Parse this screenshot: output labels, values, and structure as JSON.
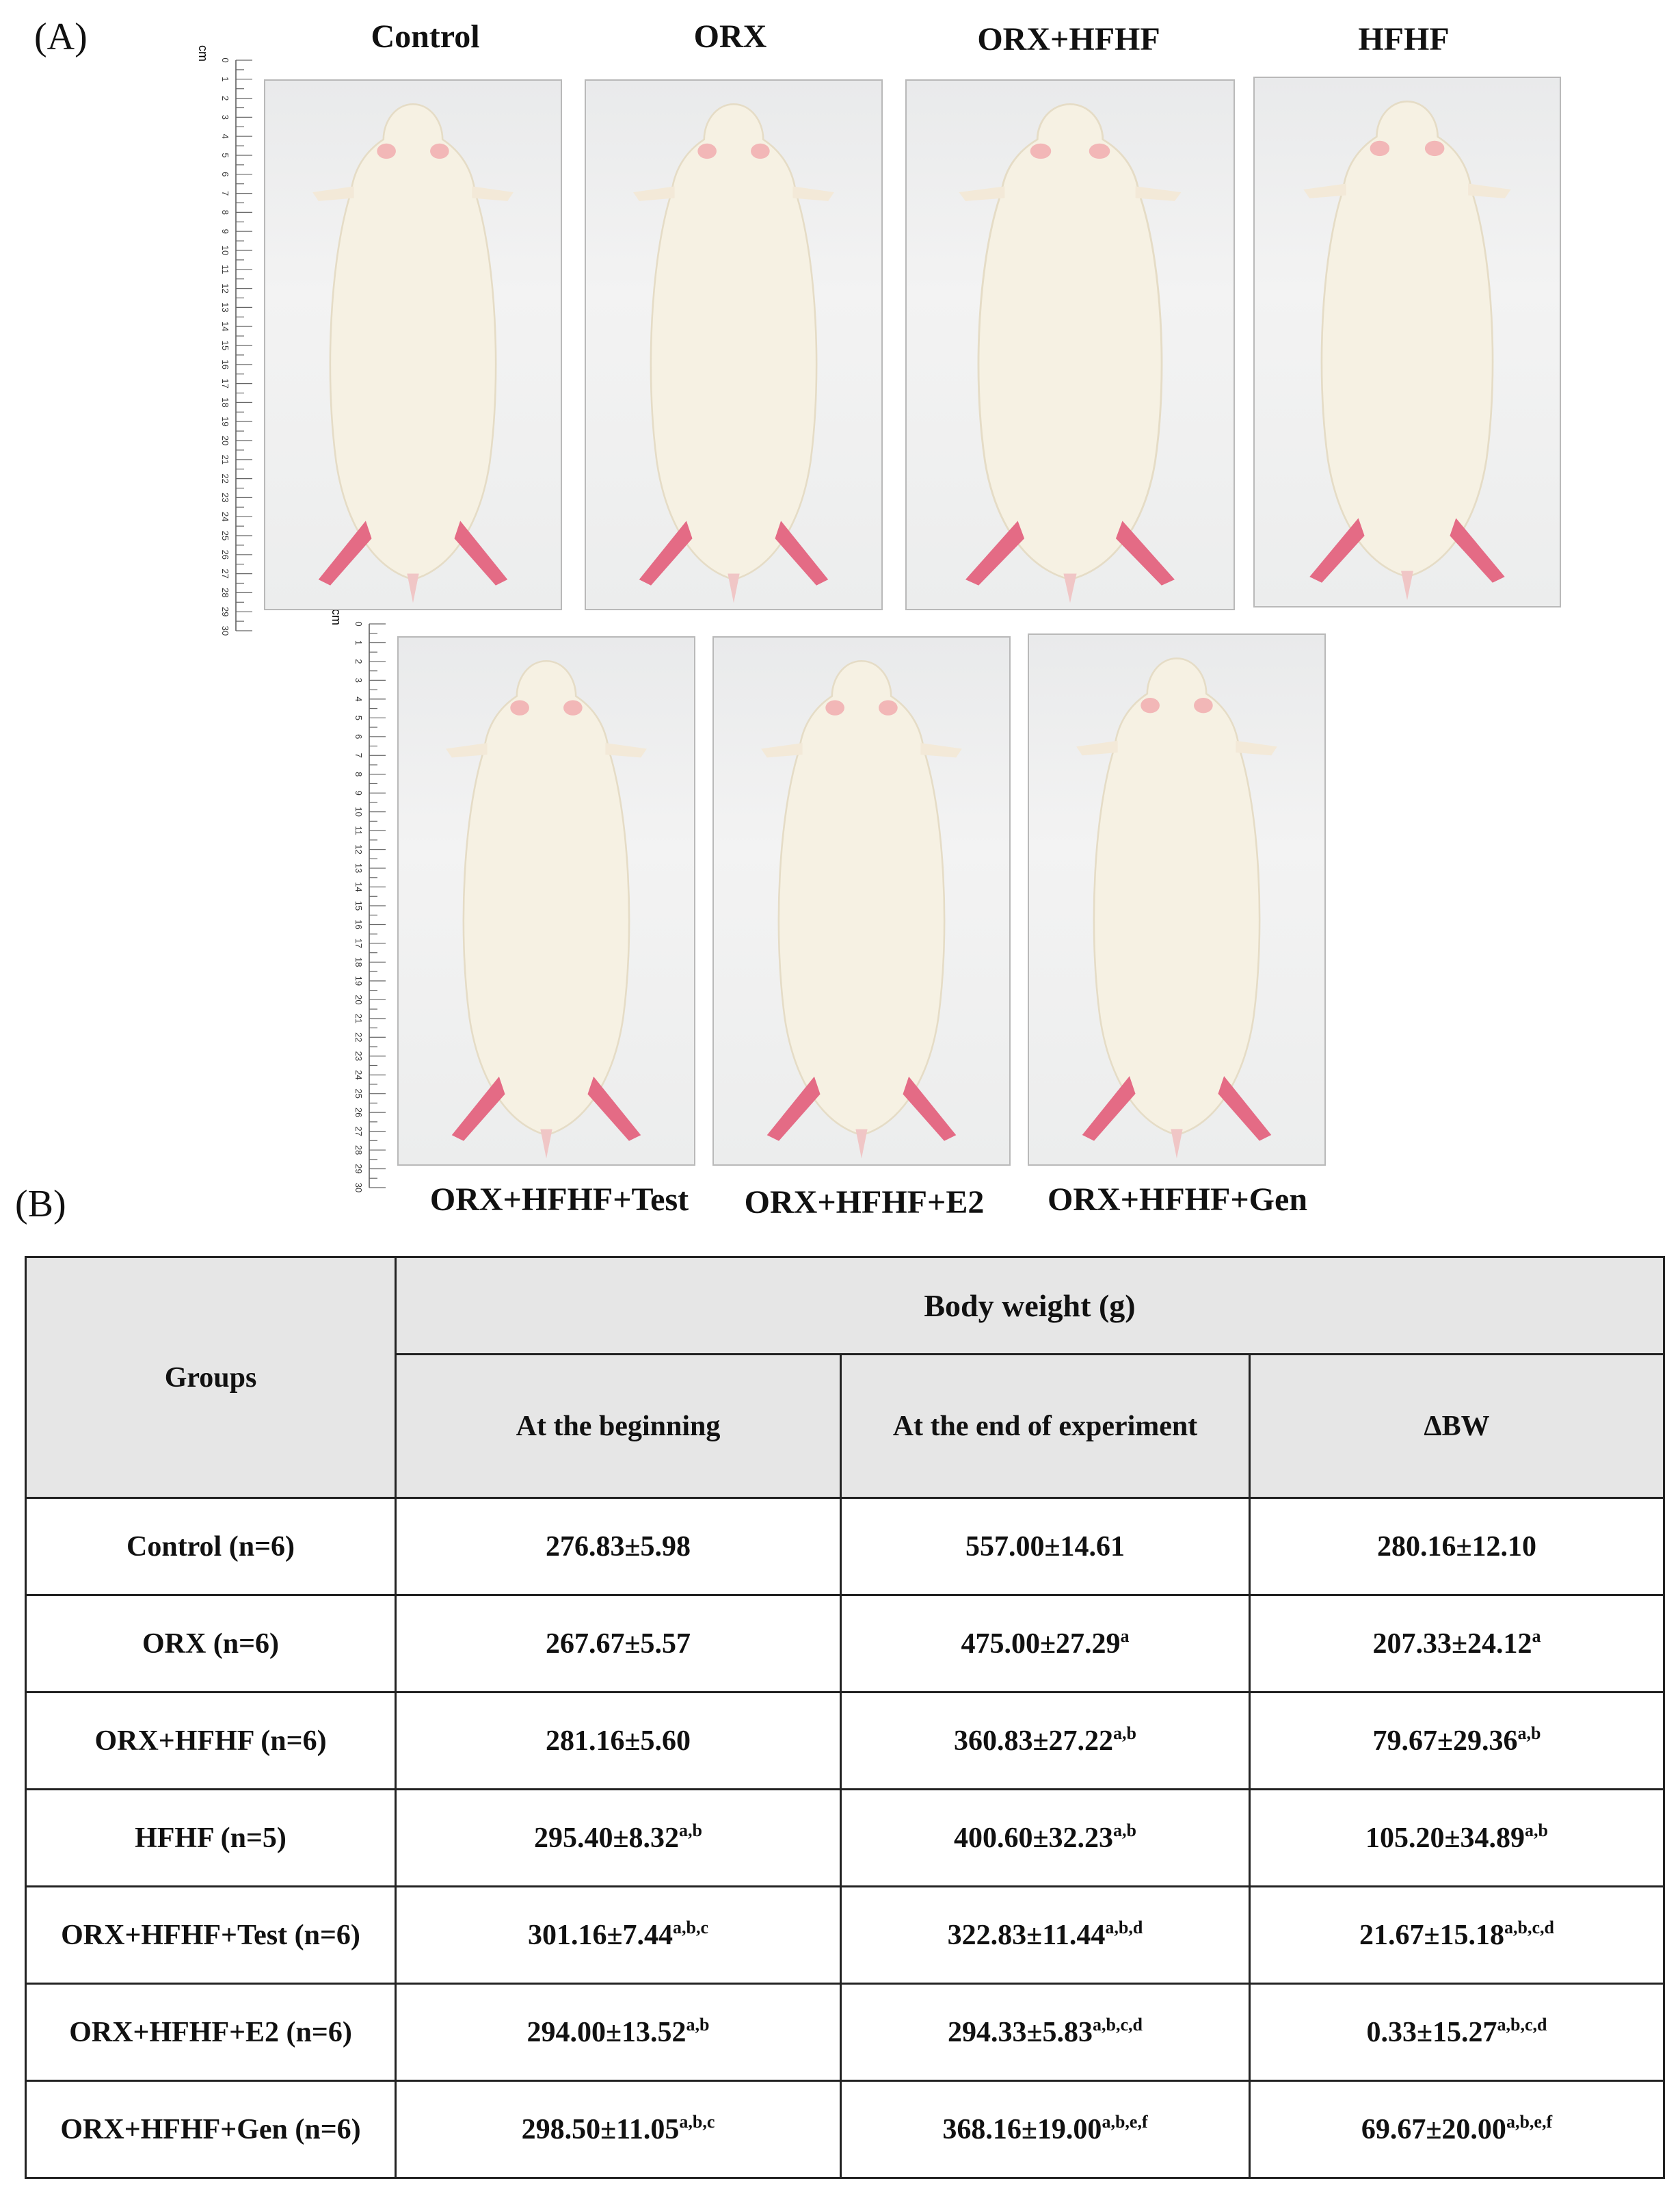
{
  "panel_a_label": "(A)",
  "panel_b_label": "(B)",
  "ruler_unit": "cm",
  "ruler_ticks": [
    "0",
    "1",
    "2",
    "3",
    "4",
    "5",
    "6",
    "7",
    "8",
    "9",
    "10",
    "11",
    "12",
    "13",
    "14",
    "15",
    "16",
    "17",
    "18",
    "19",
    "20",
    "21",
    "22",
    "23",
    "24",
    "25",
    "26",
    "27",
    "28",
    "29",
    "30"
  ],
  "photos": {
    "top": [
      "Control",
      "ORX",
      "ORX+HFHF",
      "HFHF"
    ],
    "bottom": [
      "ORX+HFHF+Test",
      "ORX+HFHF+E2",
      "ORX+HFHF+Gen"
    ]
  },
  "table": {
    "groups_header": "Groups",
    "body_weight_header": "Body weight (g)",
    "col_headers": [
      "At the beginning",
      "At the end of experiment",
      "ΔBW"
    ],
    "rows": [
      {
        "group": "Control (n=6)",
        "begin": "276.83±5.98",
        "begin_sup": "",
        "end": "557.00±14.61",
        "end_sup": "",
        "dbw": "280.16±12.10",
        "dbw_sup": ""
      },
      {
        "group": "ORX (n=6)",
        "begin": "267.67±5.57",
        "begin_sup": "",
        "end": "475.00±27.29",
        "end_sup": "a",
        "dbw": "207.33±24.12",
        "dbw_sup": "a"
      },
      {
        "group": "ORX+HFHF (n=6)",
        "begin": "281.16±5.60",
        "begin_sup": "",
        "end": "360.83±27.22",
        "end_sup": "a,b",
        "dbw": "79.67±29.36",
        "dbw_sup": "a,b"
      },
      {
        "group": "HFHF (n=5)",
        "begin": "295.40±8.32",
        "begin_sup": "a,b",
        "end": "400.60±32.23",
        "end_sup": "a,b",
        "dbw": "105.20±34.89",
        "dbw_sup": "a,b"
      },
      {
        "group": "ORX+HFHF+Test (n=6)",
        "begin": "301.16±7.44",
        "begin_sup": "a,b,c",
        "end": "322.83±11.44",
        "end_sup": "a,b,d",
        "dbw": "21.67±15.18",
        "dbw_sup": "a,b,c,d"
      },
      {
        "group": "ORX+HFHF+E2 (n=6)",
        "begin": "294.00±13.52",
        "begin_sup": "a,b",
        "end": "294.33±5.83",
        "end_sup": "a,b,c,d",
        "dbw": "0.33±15.27",
        "dbw_sup": "a,b,c,d"
      },
      {
        "group": "ORX+HFHF+Gen (n=6)",
        "begin": "298.50±11.05",
        "begin_sup": "a,b,c",
        "end": "368.16±19.00",
        "end_sup": "a,b,e,f",
        "dbw": "69.67±20.00",
        "dbw_sup": "a,b,e,f"
      }
    ]
  }
}
